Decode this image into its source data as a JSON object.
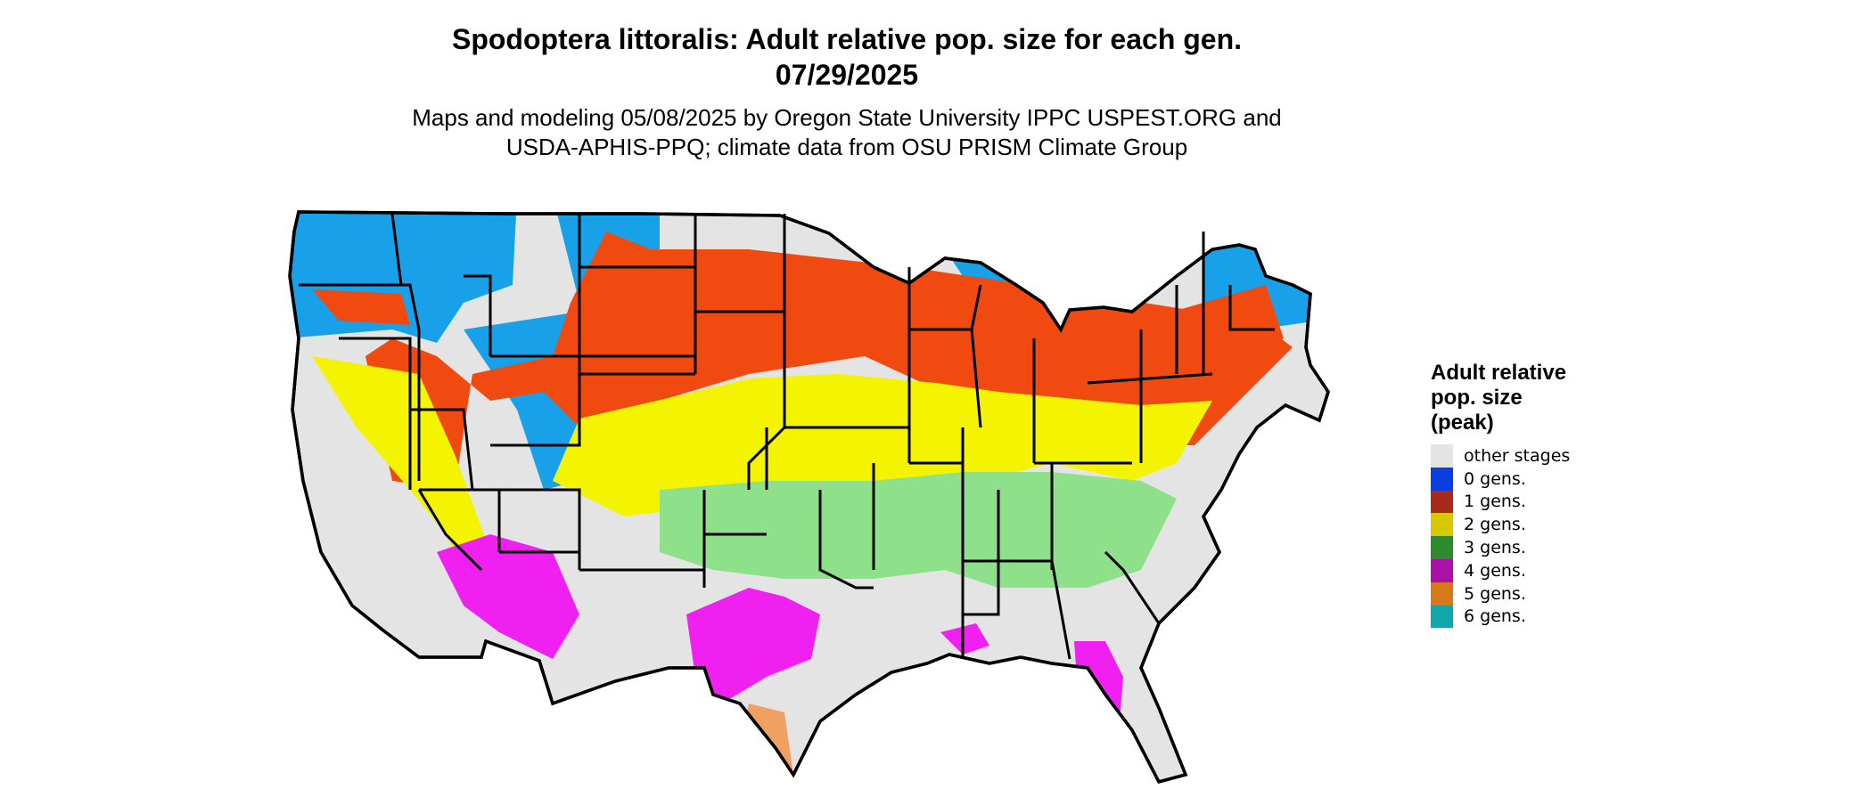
{
  "title": {
    "line1": "Spodoptera littoralis: Adult relative pop. size for each gen.",
    "line2": "07/29/2025"
  },
  "subtitle": {
    "line1": "Maps and modeling 05/08/2025 by Oregon State University IPPC USPEST.ORG and",
    "line2": "USDA-APHIS-PPQ; climate data from OSU PRISM Climate Group"
  },
  "legend": {
    "title": "Adult relative\npop. size\n(peak)",
    "items": [
      {
        "label": "other stages",
        "color": "#e4e4e4"
      },
      {
        "label": "0 gens.",
        "color": "#0a3ee0"
      },
      {
        "label": "1 gens.",
        "color": "#a82a1a"
      },
      {
        "label": "2 gens.",
        "color": "#d6c900"
      },
      {
        "label": "3 gens.",
        "color": "#2d8a2d"
      },
      {
        "label": "4 gens.",
        "color": "#aa10aa"
      },
      {
        "label": "5 gens.",
        "color": "#d87818"
      },
      {
        "label": "6 gens.",
        "color": "#10a8a8"
      }
    ]
  },
  "map": {
    "region": "Conterminous United States",
    "map_colors": {
      "other": "#e4e4e4",
      "gen0": "#18a0e8",
      "gen1": "#f04a10",
      "gen2": "#f4f400",
      "gen3": "#8ee08a",
      "gen4": "#f020f0",
      "gen5": "#f0a060",
      "border": "#000000"
    }
  }
}
